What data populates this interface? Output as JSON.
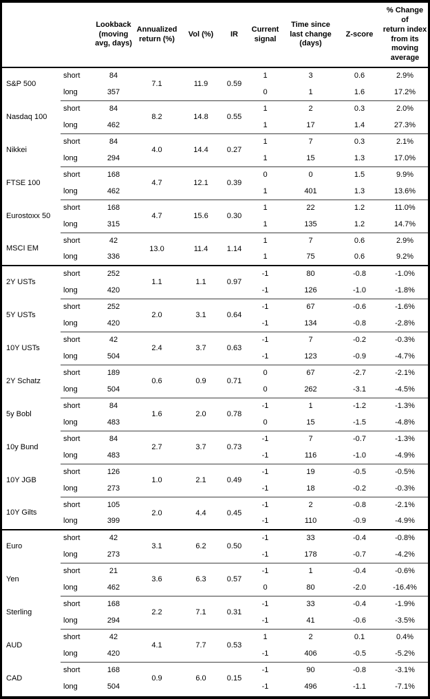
{
  "table": {
    "headers": [
      "",
      "",
      "Lookback\n(moving\navg, days)",
      "Annualized\nreturn (%)",
      "Vol (%)",
      "IR",
      "Current\nsignal",
      "Time since\nlast change\n(days)",
      "Z-score",
      "% Change of\nreturn index\nfrom its\nmoving\naverage"
    ],
    "row_labels": {
      "short": "short",
      "long": "long"
    },
    "rows": [
      {
        "name": "S&P 500",
        "section_start": false,
        "annualized": "7.1",
        "vol": "11.9",
        "ir": "0.59",
        "short": {
          "lookback": "84",
          "signal": "1",
          "time": "3",
          "zscore": "0.6",
          "pct": "2.9%"
        },
        "long": {
          "lookback": "357",
          "signal": "0",
          "time": "1",
          "zscore": "1.6",
          "pct": "17.2%"
        }
      },
      {
        "name": "Nasdaq 100",
        "section_start": false,
        "annualized": "8.2",
        "vol": "14.8",
        "ir": "0.55",
        "short": {
          "lookback": "84",
          "signal": "1",
          "time": "2",
          "zscore": "0.3",
          "pct": "2.0%"
        },
        "long": {
          "lookback": "462",
          "signal": "1",
          "time": "17",
          "zscore": "1.4",
          "pct": "27.3%"
        }
      },
      {
        "name": "Nikkei",
        "section_start": false,
        "annualized": "4.0",
        "vol": "14.4",
        "ir": "0.27",
        "short": {
          "lookback": "84",
          "signal": "1",
          "time": "7",
          "zscore": "0.3",
          "pct": "2.1%"
        },
        "long": {
          "lookback": "294",
          "signal": "1",
          "time": "15",
          "zscore": "1.3",
          "pct": "17.0%"
        }
      },
      {
        "name": "FTSE 100",
        "section_start": false,
        "annualized": "4.7",
        "vol": "12.1",
        "ir": "0.39",
        "short": {
          "lookback": "168",
          "signal": "0",
          "time": "0",
          "zscore": "1.5",
          "pct": "9.9%"
        },
        "long": {
          "lookback": "462",
          "signal": "1",
          "time": "401",
          "zscore": "1.3",
          "pct": "13.6%"
        }
      },
      {
        "name": "Eurostoxx 50",
        "section_start": false,
        "annualized": "4.7",
        "vol": "15.6",
        "ir": "0.30",
        "short": {
          "lookback": "168",
          "signal": "1",
          "time": "22",
          "zscore": "1.2",
          "pct": "11.0%"
        },
        "long": {
          "lookback": "315",
          "signal": "1",
          "time": "135",
          "zscore": "1.2",
          "pct": "14.7%"
        }
      },
      {
        "name": "MSCI EM",
        "section_start": false,
        "annualized": "13.0",
        "vol": "11.4",
        "ir": "1.14",
        "short": {
          "lookback": "42",
          "signal": "1",
          "time": "7",
          "zscore": "0.6",
          "pct": "2.9%"
        },
        "long": {
          "lookback": "336",
          "signal": "1",
          "time": "75",
          "zscore": "0.6",
          "pct": "9.2%"
        }
      },
      {
        "name": "2Y USTs",
        "section_start": true,
        "annualized": "1.1",
        "vol": "1.1",
        "ir": "0.97",
        "short": {
          "lookback": "252",
          "signal": "-1",
          "time": "80",
          "zscore": "-0.8",
          "pct": "-1.0%"
        },
        "long": {
          "lookback": "420",
          "signal": "-1",
          "time": "126",
          "zscore": "-1.0",
          "pct": "-1.8%"
        }
      },
      {
        "name": "5Y USTs",
        "section_start": false,
        "annualized": "2.0",
        "vol": "3.1",
        "ir": "0.64",
        "short": {
          "lookback": "252",
          "signal": "-1",
          "time": "67",
          "zscore": "-0.6",
          "pct": "-1.6%"
        },
        "long": {
          "lookback": "420",
          "signal": "-1",
          "time": "134",
          "zscore": "-0.8",
          "pct": "-2.8%"
        }
      },
      {
        "name": "10Y USTs",
        "section_start": false,
        "annualized": "2.4",
        "vol": "3.7",
        "ir": "0.63",
        "short": {
          "lookback": "42",
          "signal": "-1",
          "time": "7",
          "zscore": "-0.2",
          "pct": "-0.3%"
        },
        "long": {
          "lookback": "504",
          "signal": "-1",
          "time": "123",
          "zscore": "-0.9",
          "pct": "-4.7%"
        }
      },
      {
        "name": "2Y Schatz",
        "section_start": false,
        "annualized": "0.6",
        "vol": "0.9",
        "ir": "0.71",
        "short": {
          "lookback": "189",
          "signal": "0",
          "time": "67",
          "zscore": "-2.7",
          "pct": "-2.1%"
        },
        "long": {
          "lookback": "504",
          "signal": "0",
          "time": "262",
          "zscore": "-3.1",
          "pct": "-4.5%"
        }
      },
      {
        "name": "5y Bobl",
        "section_start": false,
        "annualized": "1.6",
        "vol": "2.0",
        "ir": "0.78",
        "short": {
          "lookback": "84",
          "signal": "-1",
          "time": "1",
          "zscore": "-1.2",
          "pct": "-1.3%"
        },
        "long": {
          "lookback": "483",
          "signal": "0",
          "time": "15",
          "zscore": "-1.5",
          "pct": "-4.8%"
        }
      },
      {
        "name": "10y Bund",
        "section_start": false,
        "annualized": "2.7",
        "vol": "3.7",
        "ir": "0.73",
        "short": {
          "lookback": "84",
          "signal": "-1",
          "time": "7",
          "zscore": "-0.7",
          "pct": "-1.3%"
        },
        "long": {
          "lookback": "483",
          "signal": "-1",
          "time": "116",
          "zscore": "-1.0",
          "pct": "-4.9%"
        }
      },
      {
        "name": "10Y JGB",
        "section_start": false,
        "annualized": "1.0",
        "vol": "2.1",
        "ir": "0.49",
        "short": {
          "lookback": "126",
          "signal": "-1",
          "time": "19",
          "zscore": "-0.5",
          "pct": "-0.5%"
        },
        "long": {
          "lookback": "273",
          "signal": "-1",
          "time": "18",
          "zscore": "-0.2",
          "pct": "-0.3%"
        }
      },
      {
        "name": "10Y Gilts",
        "section_start": false,
        "annualized": "2.0",
        "vol": "4.4",
        "ir": "0.45",
        "short": {
          "lookback": "105",
          "signal": "-1",
          "time": "2",
          "zscore": "-0.8",
          "pct": "-2.1%"
        },
        "long": {
          "lookback": "399",
          "signal": "-1",
          "time": "110",
          "zscore": "-0.9",
          "pct": "-4.9%"
        }
      },
      {
        "name": "Euro",
        "section_start": true,
        "annualized": "3.1",
        "vol": "6.2",
        "ir": "0.50",
        "short": {
          "lookback": "42",
          "signal": "-1",
          "time": "33",
          "zscore": "-0.4",
          "pct": "-0.8%"
        },
        "long": {
          "lookback": "273",
          "signal": "-1",
          "time": "178",
          "zscore": "-0.7",
          "pct": "-4.2%"
        }
      },
      {
        "name": "Yen",
        "section_start": false,
        "annualized": "3.6",
        "vol": "6.3",
        "ir": "0.57",
        "short": {
          "lookback": "21",
          "signal": "-1",
          "time": "1",
          "zscore": "-0.4",
          "pct": "-0.6%"
        },
        "long": {
          "lookback": "462",
          "signal": "0",
          "time": "80",
          "zscore": "-2.0",
          "pct": "-16.4%"
        }
      },
      {
        "name": "Sterling",
        "section_start": false,
        "annualized": "2.2",
        "vol": "7.1",
        "ir": "0.31",
        "short": {
          "lookback": "168",
          "signal": "-1",
          "time": "33",
          "zscore": "-0.4",
          "pct": "-1.9%"
        },
        "long": {
          "lookback": "294",
          "signal": "-1",
          "time": "41",
          "zscore": "-0.6",
          "pct": "-3.5%"
        }
      },
      {
        "name": "AUD",
        "section_start": false,
        "annualized": "4.1",
        "vol": "7.7",
        "ir": "0.53",
        "short": {
          "lookback": "42",
          "signal": "1",
          "time": "2",
          "zscore": "0.1",
          "pct": "0.4%"
        },
        "long": {
          "lookback": "420",
          "signal": "-1",
          "time": "406",
          "zscore": "-0.5",
          "pct": "-5.2%"
        }
      },
      {
        "name": "CAD",
        "section_start": false,
        "annualized": "0.9",
        "vol": "6.0",
        "ir": "0.15",
        "short": {
          "lookback": "168",
          "signal": "-1",
          "time": "90",
          "zscore": "-0.8",
          "pct": "-3.1%"
        },
        "long": {
          "lookback": "504",
          "signal": "-1",
          "time": "496",
          "zscore": "-1.1",
          "pct": "-7.1%"
        }
      }
    ]
  }
}
